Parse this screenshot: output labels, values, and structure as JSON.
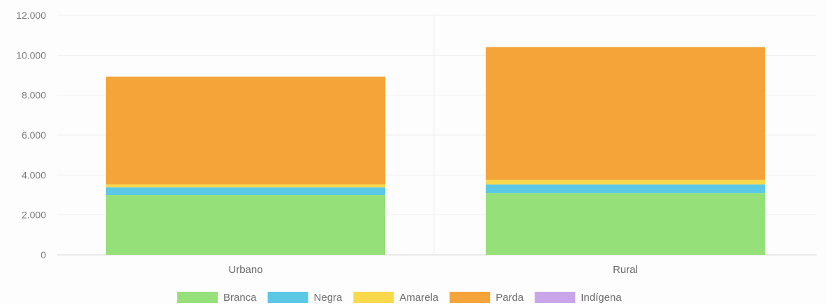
{
  "chart_data": {
    "type": "bar",
    "stacked": true,
    "categories": [
      "Urbano",
      "Rural"
    ],
    "series": [
      {
        "name": "Branca",
        "color": "#96e07a",
        "values": [
          3000,
          3100
        ]
      },
      {
        "name": "Negra",
        "color": "#5bc8e6",
        "values": [
          380,
          430
        ]
      },
      {
        "name": "Amarela",
        "color": "#f9d84a",
        "values": [
          150,
          230
        ]
      },
      {
        "name": "Parda",
        "color": "#f5a43a",
        "values": [
          5400,
          6650
        ]
      },
      {
        "name": "Indígena",
        "color": "#c9a6ea",
        "values": [
          0,
          0
        ]
      }
    ],
    "ylim": [
      0,
      12000
    ],
    "yticks": [
      0,
      2000,
      4000,
      6000,
      8000,
      10000,
      12000
    ],
    "ytick_labels": [
      "0",
      "2.000",
      "4.000",
      "6.000",
      "8.000",
      "10.000",
      "12.000"
    ],
    "xlabel": "",
    "ylabel": "",
    "grid": true,
    "legend_position": "bottom-center"
  }
}
